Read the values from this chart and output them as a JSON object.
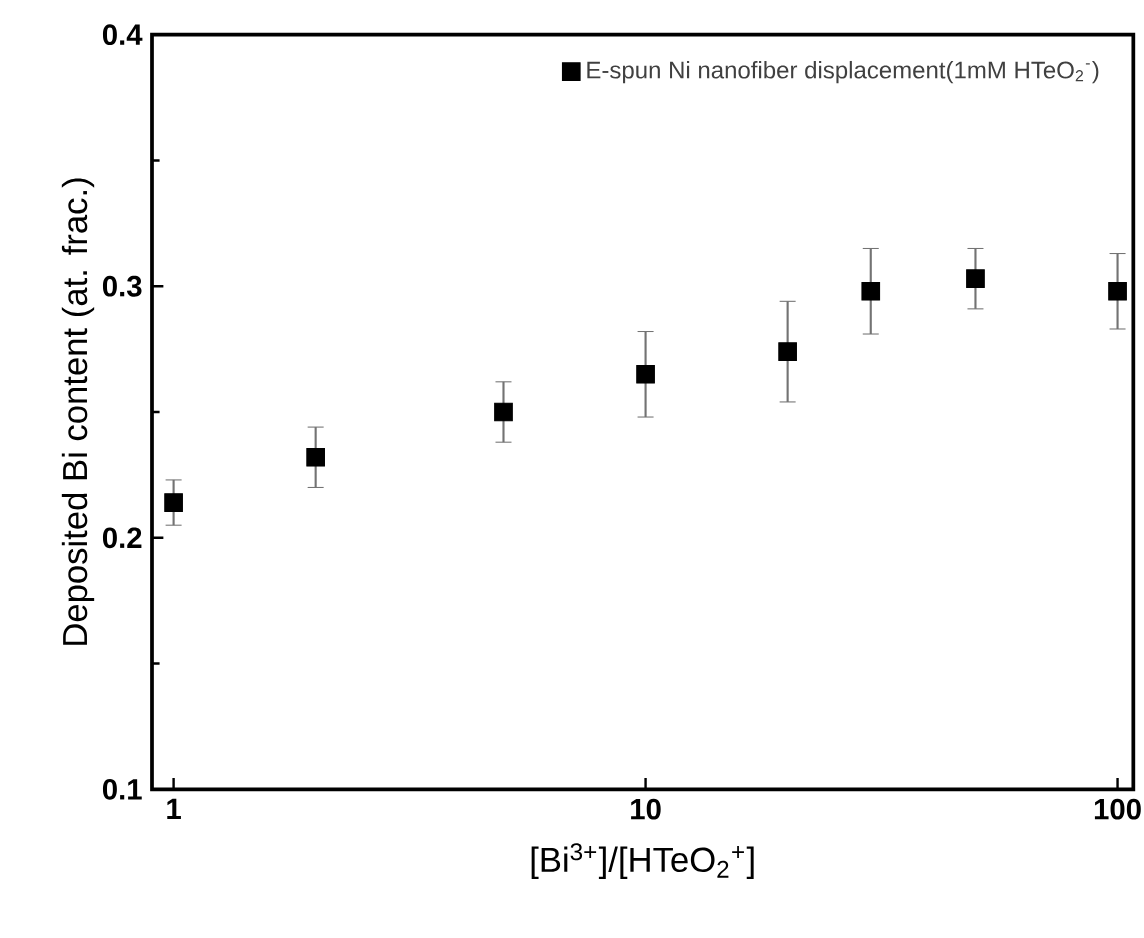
{
  "chart_data": {
    "type": "scatter",
    "xlabel": "[Bi$^{3+}$]/[HTeO$_{2}$$^{+}$]",
    "ylabel": "Deposited Bi content (at. frac.)",
    "x": [
      1,
      2,
      5,
      10,
      20,
      30,
      50,
      100
    ],
    "series": [
      {
        "name": "E-spun Ni nanofiber displacement(1mM HTeO$_{2}$$^{-}$)",
        "color": "#000000",
        "values": [
          0.214,
          0.232,
          0.25,
          0.265,
          0.274,
          0.298,
          0.303,
          0.298
        ],
        "errors": [
          0.009,
          0.012,
          0.012,
          0.017,
          0.02,
          0.017,
          0.012,
          0.015
        ]
      }
    ],
    "log": "x",
    "xlim": [
      0.9,
      108
    ],
    "xticks": [
      1,
      10,
      100
    ],
    "ylim": [
      0.1,
      0.4
    ],
    "yticks": [
      0.1,
      0.2,
      0.3,
      0.4
    ],
    "marker": "square",
    "legend": "top right",
    "grid": false
  }
}
